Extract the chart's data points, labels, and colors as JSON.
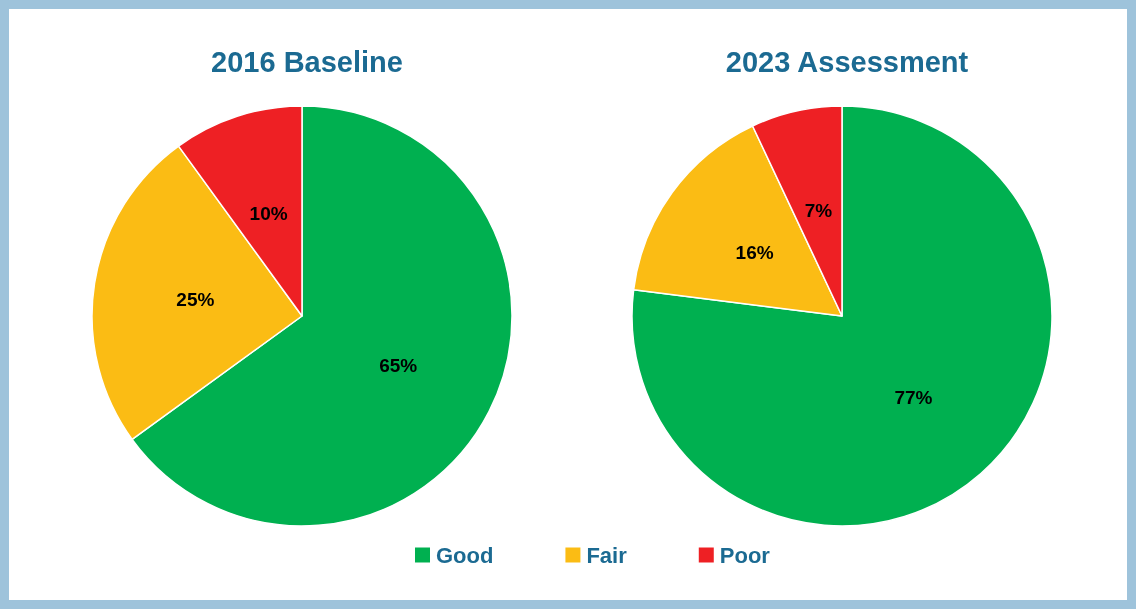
{
  "chart_data": [
    {
      "type": "pie",
      "title": "2016 Baseline",
      "categories": [
        "Good",
        "Fair",
        "Poor"
      ],
      "values": [
        65,
        25,
        10
      ],
      "value_labels": [
        "65%",
        "25%",
        "10%"
      ],
      "colors": [
        "#00b050",
        "#fbbc14",
        "#ee2024"
      ],
      "legend": "bottom"
    },
    {
      "type": "pie",
      "title": "2023 Assessment",
      "values": [
        77,
        16,
        7
      ],
      "value_labels": [
        "77%",
        "16%",
        "7%"
      ],
      "colors": [
        "#00b050",
        "#fbbc14",
        "#ee2024"
      ]
    }
  ]
}
